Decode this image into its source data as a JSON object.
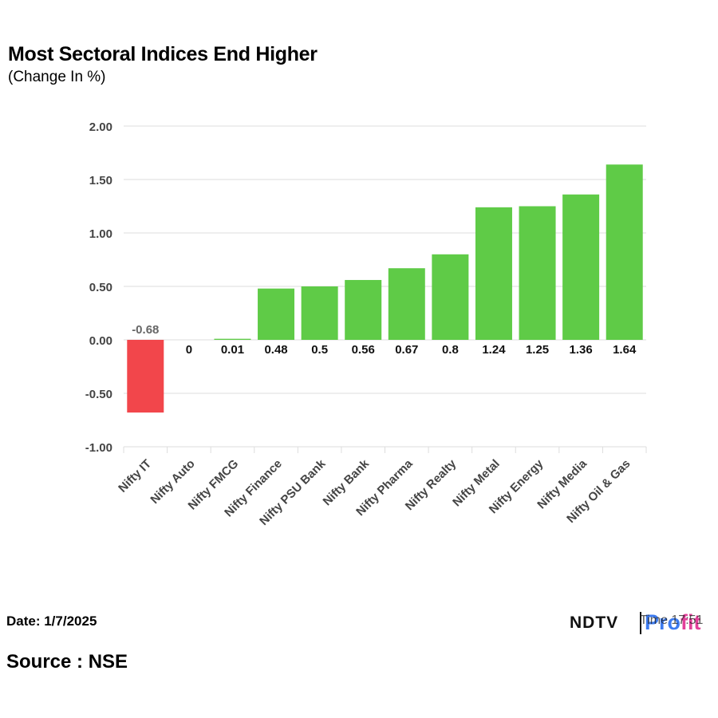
{
  "chart_data": {
    "type": "bar",
    "title": "Most Sectoral Indices End Higher",
    "subtitle": "(Change In %)",
    "categories": [
      "Nifty IT",
      "Nifty Auto",
      "Nifty FMCG",
      "Nifty Finance",
      "Nifty PSU Bank",
      "Nifty Bank",
      "Nifty Pharma",
      "Nifty Realty",
      "Nifty Metal",
      "Nifty Energy",
      "Nifty Media",
      "Nifty Oil & Gas"
    ],
    "values": [
      -0.68,
      0,
      0.01,
      0.48,
      0.5,
      0.56,
      0.67,
      0.8,
      1.24,
      1.25,
      1.36,
      1.64
    ],
    "value_labels": [
      "-0.68",
      "0",
      "0.01",
      "0.48",
      "0.5",
      "0.56",
      "0.67",
      "0.8",
      "1.24",
      "1.25",
      "1.36",
      "1.64"
    ],
    "yticks": [
      "2.00",
      "1.50",
      "1.00",
      "0.50",
      "0.00",
      "-0.50",
      "-1.00"
    ],
    "ytick_values": [
      2,
      1.5,
      1,
      0.5,
      0,
      -0.5,
      -1
    ],
    "ylim": [
      -1,
      2
    ],
    "xlabel": "",
    "ylabel": "",
    "grid": true,
    "colors": {
      "positive": "#5fcb47",
      "negative": "#f2464b",
      "grid": "#dddddd",
      "tick": "#444444"
    }
  },
  "footer": {
    "date": "Date: 1/7/2025",
    "source": "Source : NSE"
  },
  "logo": {
    "brand": "NDTV",
    "product_a": "Pro",
    "product_b": "fit",
    "overlay": "Time 17:51"
  }
}
